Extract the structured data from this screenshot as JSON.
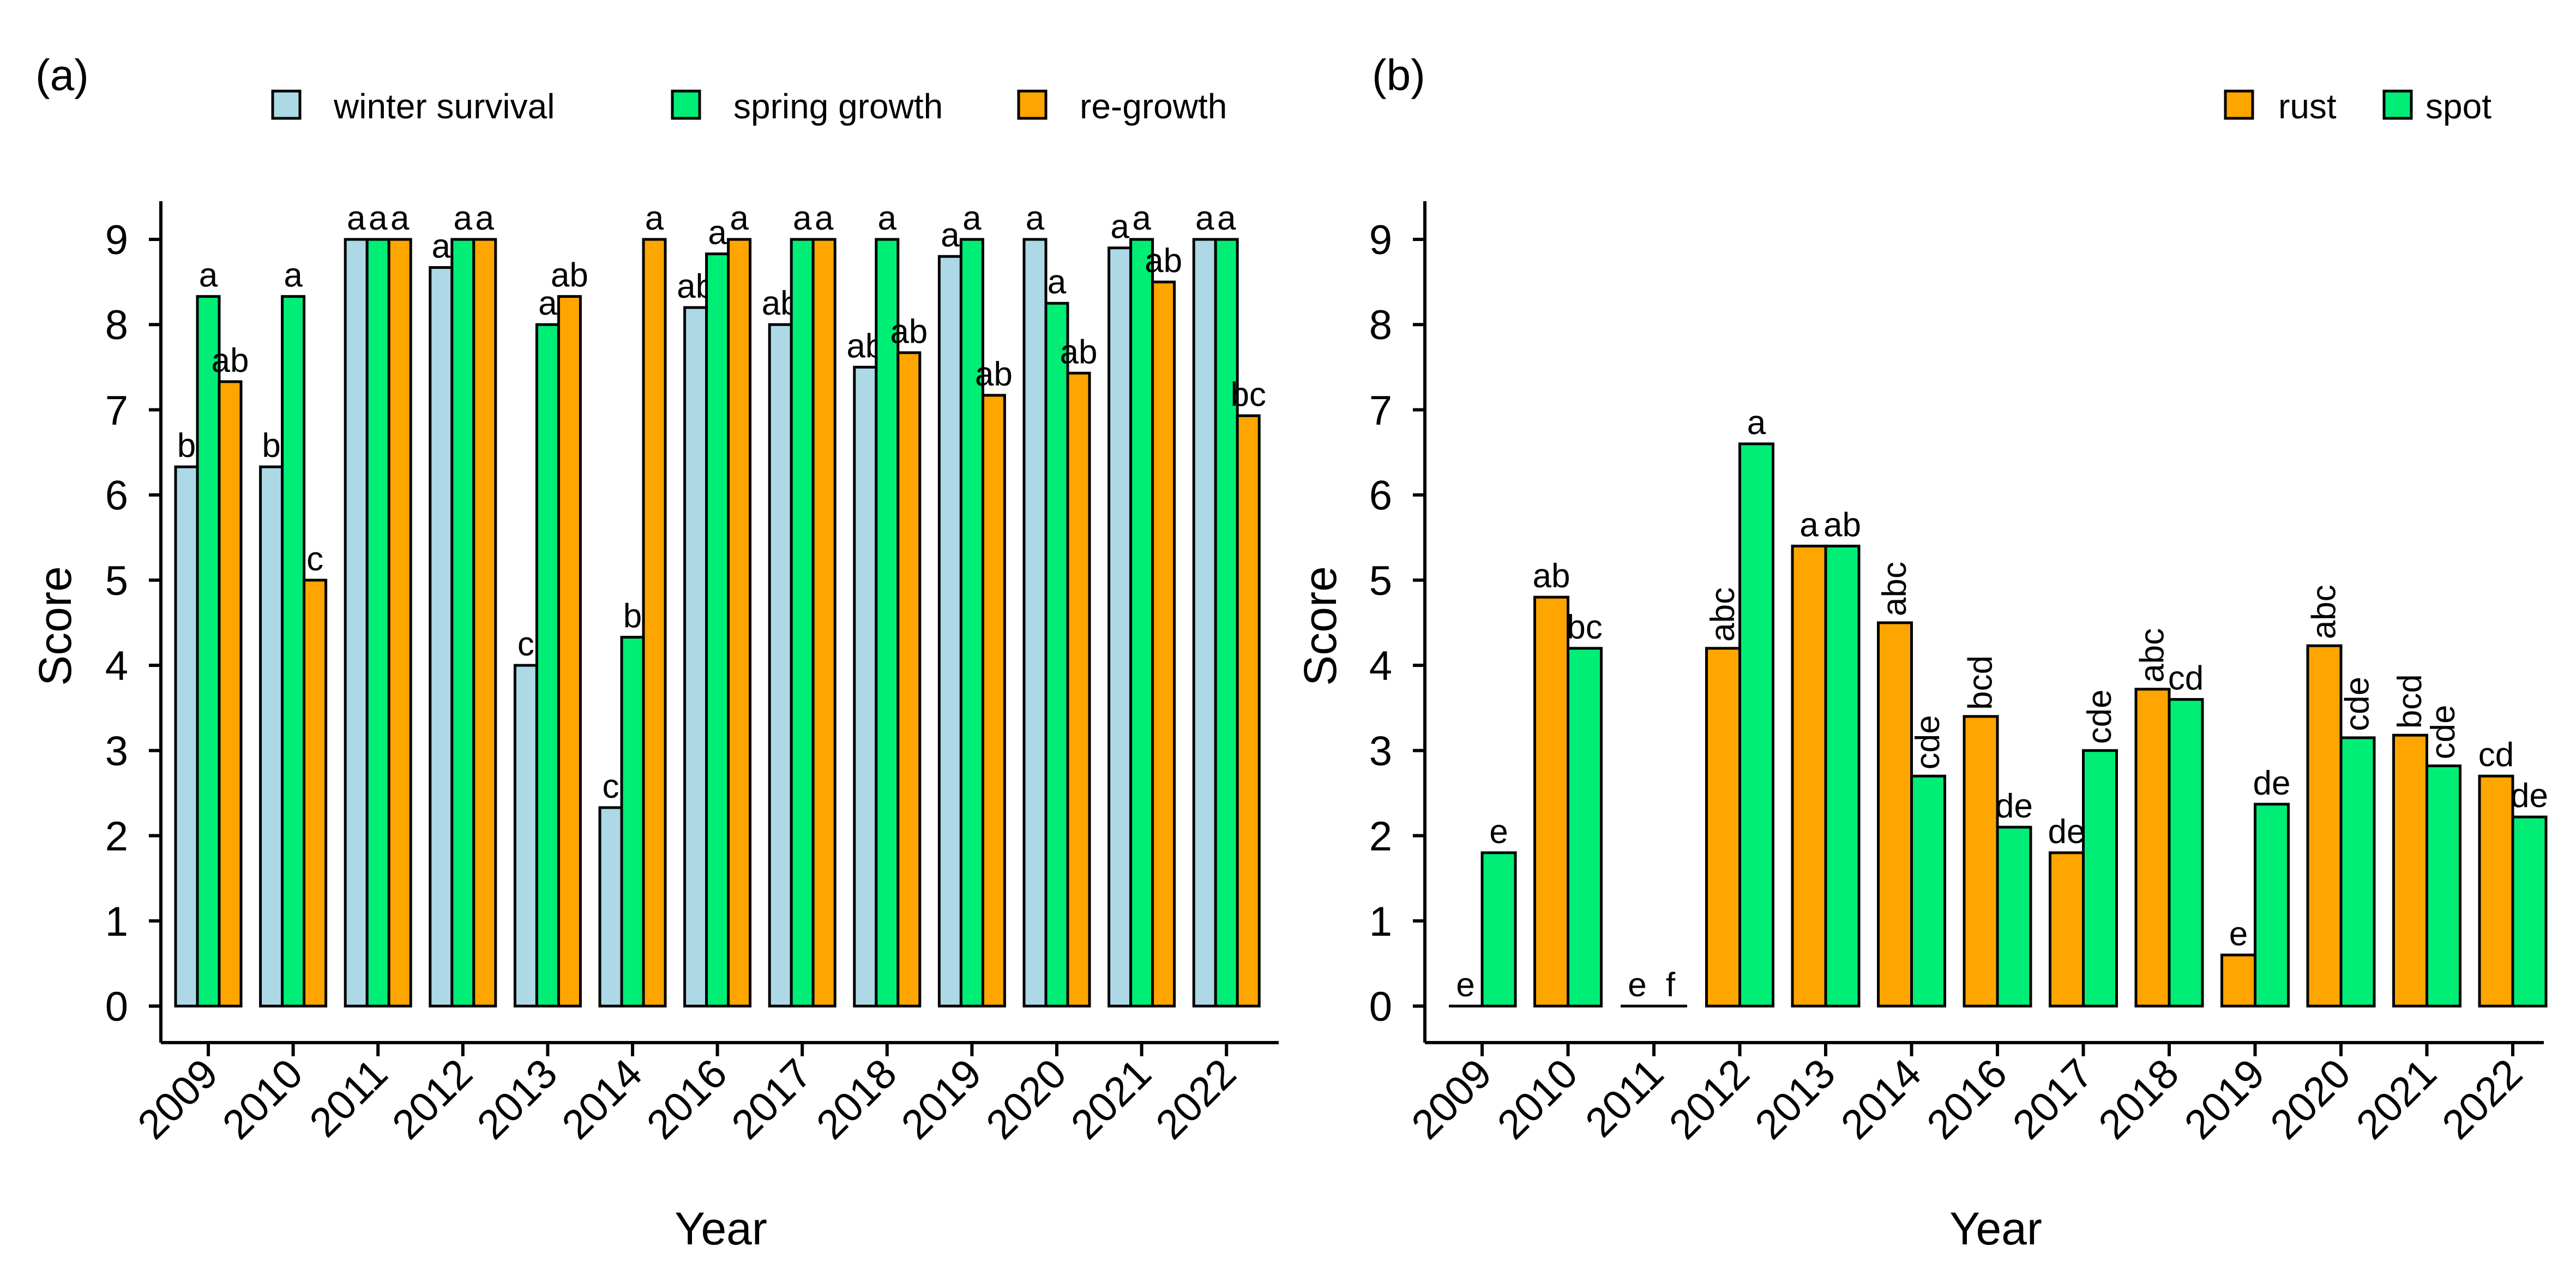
{
  "colors": {
    "winter_survival": "#add8e6",
    "spring_growth": "#00ee76",
    "re_growth": "#ffa500",
    "rust": "#ffa500",
    "spot": "#00ee76"
  },
  "chart_data": [
    {
      "type": "bar",
      "panel_label": "(a)",
      "xlabel": "Year",
      "ylabel": "Score",
      "ylim": [
        0,
        9
      ],
      "yticks": [
        0,
        1,
        2,
        3,
        4,
        5,
        6,
        7,
        8,
        9
      ],
      "legend_position": "top",
      "categories": [
        "2009",
        "2010",
        "2011",
        "2012",
        "2013",
        "2014",
        "2016",
        "2017",
        "2018",
        "2019",
        "2020",
        "2021",
        "2022"
      ],
      "series": [
        {
          "name": "winter survival",
          "color_key": "winter_survival",
          "values": [
            6.33,
            6.33,
            9.0,
            8.67,
            4.0,
            2.33,
            8.2,
            8.0,
            7.5,
            8.8,
            9.0,
            8.9,
            9.0
          ],
          "labels": [
            "b",
            "b",
            "a",
            "a",
            "c",
            "c",
            "ab",
            "ab",
            "ab",
            "a",
            "a",
            "a",
            "a"
          ]
        },
        {
          "name": "spring growth",
          "color_key": "spring_growth",
          "values": [
            8.33,
            8.33,
            9.0,
            9.0,
            8.0,
            4.33,
            8.83,
            9.0,
            9.0,
            9.0,
            8.25,
            9.0,
            9.0
          ],
          "labels": [
            "a",
            "a",
            "a",
            "a",
            "a",
            "b",
            "a",
            "a",
            "a",
            "a",
            "a",
            "a",
            "a"
          ]
        },
        {
          "name": "re-growth",
          "color_key": "re_growth",
          "values": [
            7.33,
            5.0,
            9.0,
            9.0,
            8.33,
            9.0,
            9.0,
            9.0,
            7.67,
            7.17,
            7.43,
            8.5,
            6.93
          ],
          "labels": [
            "ab",
            "c",
            "a",
            "a",
            "ab",
            "a",
            "a",
            "a",
            "ab",
            "ab",
            "ab",
            "ab",
            "bc"
          ]
        }
      ]
    },
    {
      "type": "bar",
      "panel_label": "(b)",
      "xlabel": "Year",
      "ylabel": "Score",
      "ylim": [
        0,
        9
      ],
      "yticks": [
        0,
        1,
        2,
        3,
        4,
        5,
        6,
        7,
        8,
        9
      ],
      "legend_position": "top-right",
      "categories": [
        "2009",
        "2010",
        "2011",
        "2012",
        "2013",
        "2014",
        "2016",
        "2017",
        "2018",
        "2019",
        "2020",
        "2021",
        "2022"
      ],
      "series": [
        {
          "name": "rust",
          "color_key": "rust",
          "values": [
            0,
            4.8,
            0,
            4.2,
            5.4,
            4.5,
            3.4,
            1.8,
            3.72,
            0.6,
            4.23,
            3.18,
            2.7
          ],
          "labels": [
            "e",
            "ab",
            "e",
            "abc",
            "a",
            "abc",
            "bcd",
            "de",
            "abc",
            "e",
            "abc",
            "bcd",
            "cd"
          ]
        },
        {
          "name": "spot",
          "color_key": "spot",
          "values": [
            1.8,
            4.2,
            0,
            6.6,
            5.4,
            2.7,
            2.1,
            3.0,
            3.6,
            2.37,
            3.15,
            2.82,
            2.22
          ],
          "labels": [
            "e",
            "bc",
            "f",
            "a",
            "ab",
            "cde",
            "de",
            "cde",
            "cd",
            "de",
            "cde",
            "cde",
            "de"
          ]
        }
      ]
    }
  ]
}
